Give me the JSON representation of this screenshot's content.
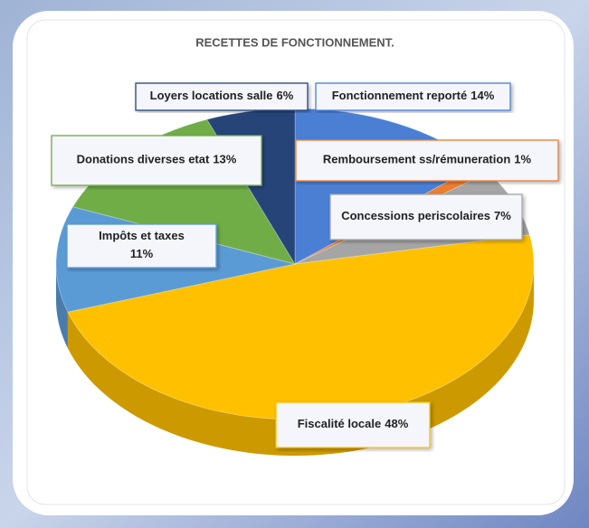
{
  "chart_data": {
    "type": "pie",
    "title": "RECETTES DE FONCTIONNEMENT.",
    "categories": [
      "Fonctionnement reporté",
      "Remboursement ss/rémuneration",
      "Concessions periscolaires",
      "Fiscalité locale",
      "Impôts et taxes",
      "Donations diverses etat",
      "Loyers locations salle"
    ],
    "values": [
      14,
      1,
      7,
      48,
      11,
      13,
      6
    ],
    "value_labels": [
      "14%",
      "1%",
      "7%",
      "48%",
      "11%",
      "13%",
      "6%"
    ],
    "colors": [
      "#4a7fd4",
      "#ed7d31",
      "#a5a5a5",
      "#ffc000",
      "#5b9bd5",
      "#70ad47",
      "#264478"
    ]
  }
}
